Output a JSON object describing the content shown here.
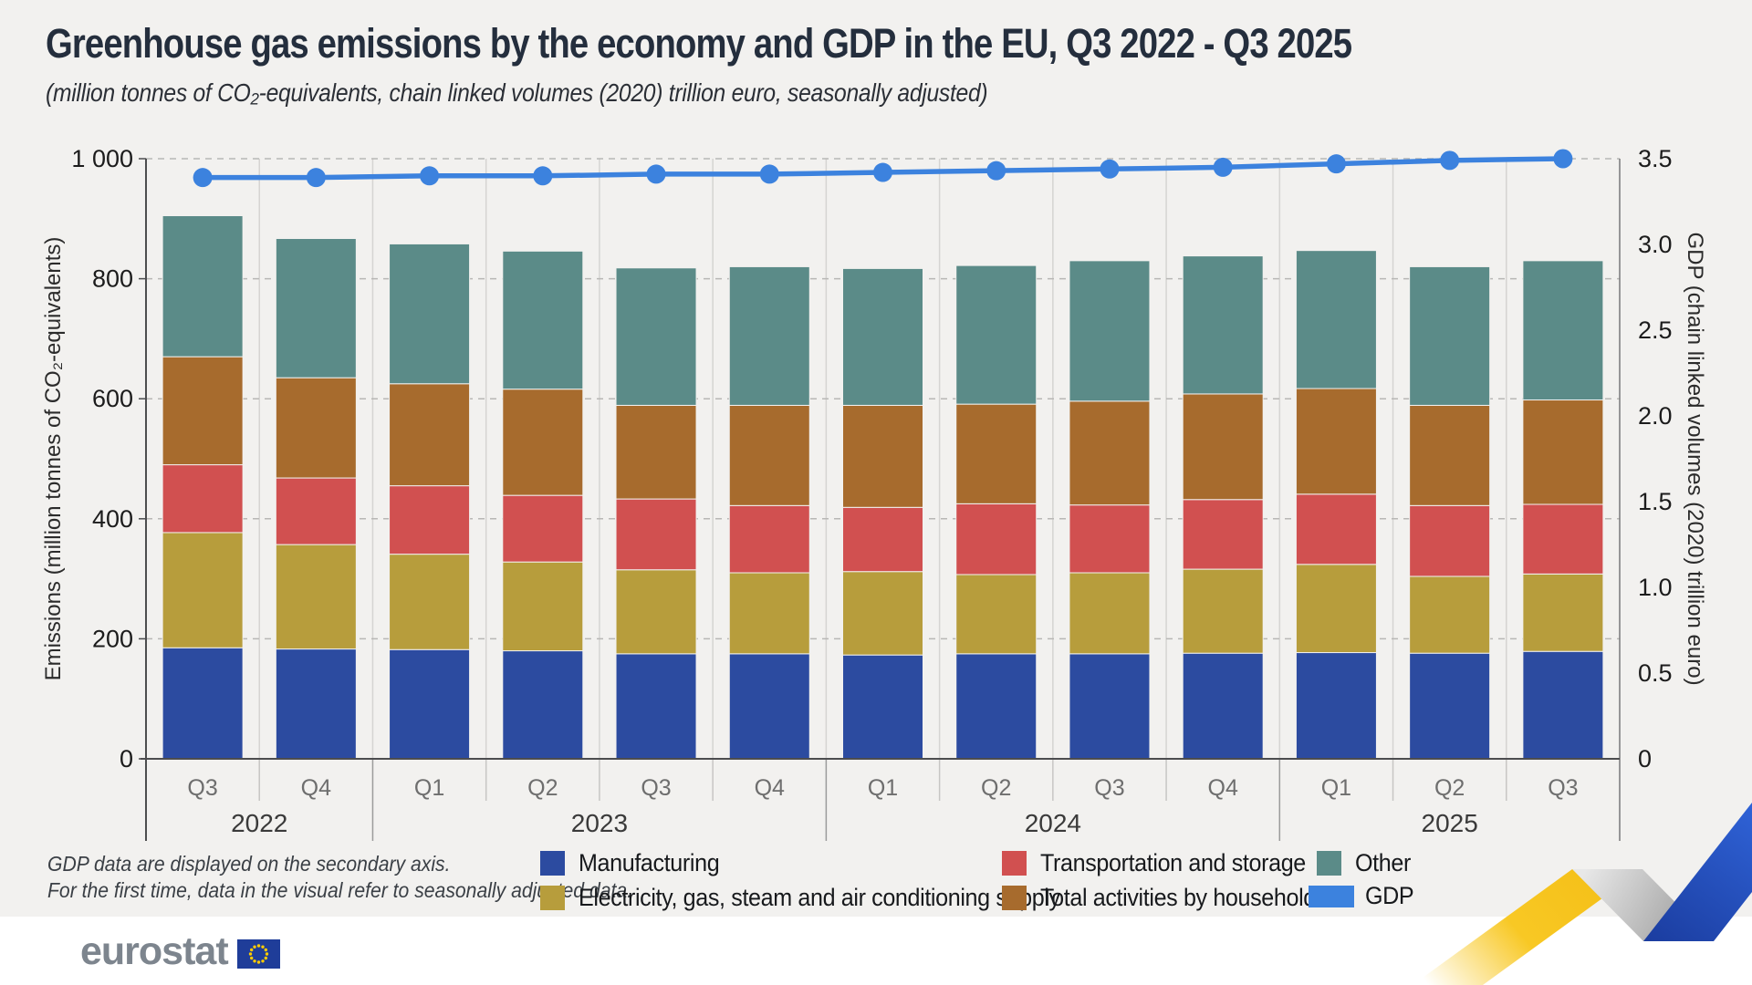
{
  "header": {
    "title": "Greenhouse gas emissions by the economy and GDP in the EU, Q3 2022 - Q3 2025",
    "subtitle": "(million tonnes of CO₂-equivalents, chain linked volumes (2020) trillion euro, seasonally adjusted)"
  },
  "chart_data": {
    "type": "bar",
    "subtype": "stacked-bars-with-line",
    "categories": [
      "Q3",
      "Q4",
      "Q1",
      "Q2",
      "Q3",
      "Q4",
      "Q1",
      "Q2",
      "Q3",
      "Q4",
      "Q1",
      "Q2",
      "Q3"
    ],
    "year_groups": [
      {
        "label": "2022",
        "span": 2
      },
      {
        "label": "2023",
        "span": 4
      },
      {
        "label": "2024",
        "span": 4
      },
      {
        "label": "2025",
        "span": 3
      }
    ],
    "series": [
      {
        "name": "Manufacturing",
        "color": "#2c4ba0",
        "values": [
          185,
          183,
          182,
          180,
          175,
          175,
          173,
          175,
          175,
          176,
          177,
          176,
          179
        ]
      },
      {
        "name": "Electricity, gas, steam and air conditioning supply",
        "color": "#b79d3c",
        "values": [
          192,
          174,
          159,
          148,
          140,
          135,
          139,
          132,
          135,
          140,
          147,
          128,
          129
        ]
      },
      {
        "name": "Transportation and storage",
        "color": "#d15050",
        "values": [
          113,
          111,
          114,
          111,
          118,
          112,
          107,
          118,
          113,
          116,
          117,
          118,
          116
        ]
      },
      {
        "name": "Total activities by households",
        "color": "#a76b2d",
        "values": [
          180,
          167,
          170,
          177,
          156,
          167,
          170,
          166,
          173,
          176,
          176,
          167,
          174
        ]
      },
      {
        "name": "Other",
        "color": "#5b8b88",
        "values": [
          235,
          232,
          233,
          230,
          229,
          231,
          228,
          231,
          234,
          230,
          230,
          231,
          232
        ]
      }
    ],
    "line_series": {
      "name": "GDP",
      "color": "#3c82de",
      "values": [
        3.39,
        3.39,
        3.4,
        3.4,
        3.41,
        3.41,
        3.42,
        3.43,
        3.44,
        3.45,
        3.47,
        3.49,
        3.5
      ]
    },
    "left_axis": {
      "title": "Emissions (million tonnes of CO₂-equivalents)",
      "max": 1000,
      "ticks": [
        0,
        200,
        400,
        600,
        800,
        1000
      ],
      "tick_labels": [
        "0",
        "200",
        "400",
        "600",
        "800",
        "1 000"
      ]
    },
    "right_axis": {
      "title": "GDP (chain linked volumes (2020) trillion euro)",
      "max": 3.5,
      "tick_labels": [
        "0",
        "0.5",
        "1.0",
        "1.5",
        "2.0",
        "2.5",
        "3.0",
        "3.5"
      ]
    },
    "grid": "horizontal-dashed",
    "legend_position": "bottom"
  },
  "notes": {
    "line1": "GDP data are displayed on the secondary axis.",
    "line2": "For the first time, data in the visual refer to seasonally adjusted data."
  },
  "footer": {
    "logo_text": "eurostat"
  }
}
